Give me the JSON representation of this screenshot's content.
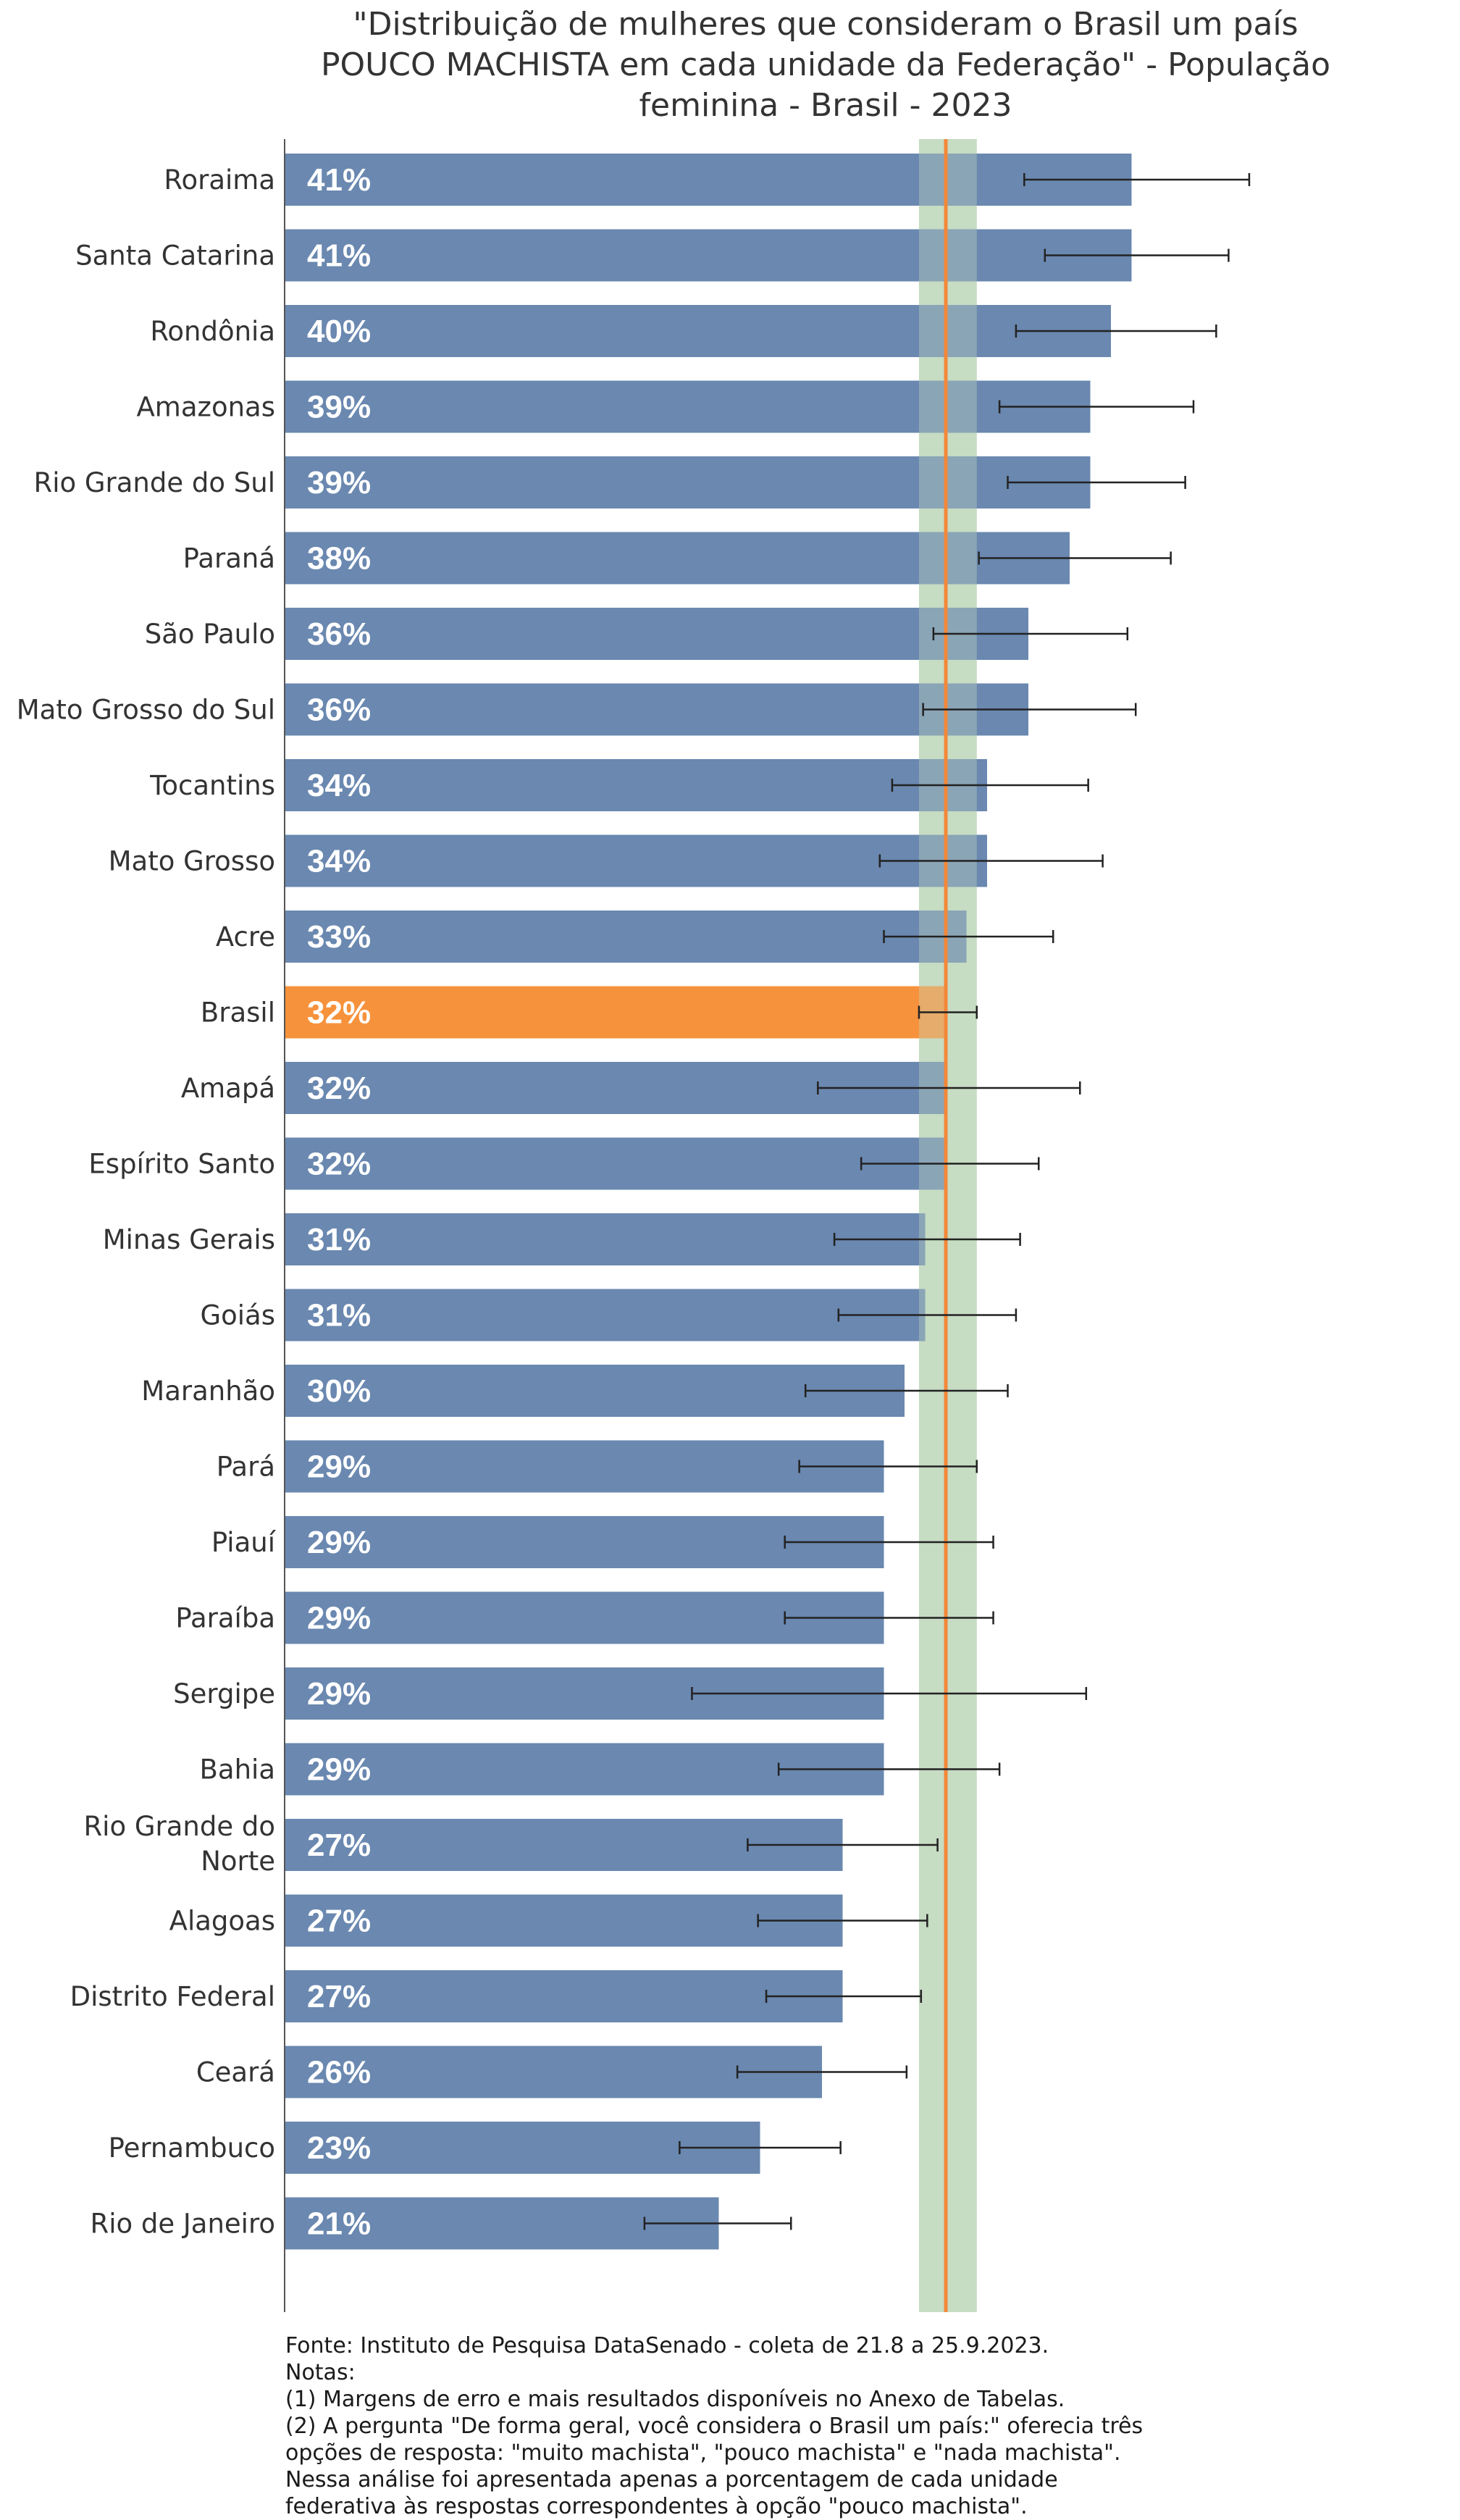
{
  "chart_data": {
    "type": "bar",
    "orientation": "horizontal",
    "title_lines": [
      "\"Distribuição de mulheres que consideram o Brasil um país",
      "POUCO MACHISTA em cada unidade da Federação\" - População",
      "feminina - Brasil - 2023"
    ],
    "categories": [
      "Roraima",
      "Santa Catarina",
      "Rondônia",
      "Amazonas",
      "Rio Grande do Sul",
      "Paraná",
      "São Paulo",
      "Mato Grosso do Sul",
      "Tocantins",
      "Mato Grosso",
      "Acre",
      "Brasil",
      "Amapá",
      "Espírito Santo",
      "Minas Gerais",
      "Goiás",
      "Maranhão",
      "Pará",
      "Piauí",
      "Paraíba",
      "Sergipe",
      "Bahia",
      "Rio Grande do Norte",
      "Alagoas",
      "Distrito Federal",
      "Ceará",
      "Pernambuco",
      "Rio de Janeiro"
    ],
    "values": [
      41,
      41,
      40,
      39,
      39,
      38,
      36,
      36,
      34,
      34,
      33,
      32,
      32,
      32,
      31,
      31,
      30,
      29,
      29,
      29,
      29,
      29,
      27,
      27,
      27,
      26,
      23,
      21
    ],
    "value_labels": [
      "41%",
      "41%",
      "40%",
      "39%",
      "39%",
      "38%",
      "36%",
      "36%",
      "34%",
      "34%",
      "33%",
      "32%",
      "32%",
      "32%",
      "31%",
      "31%",
      "30%",
      "29%",
      "29%",
      "29%",
      "29%",
      "29%",
      "27%",
      "27%",
      "27%",
      "26%",
      "23%",
      "21%"
    ],
    "error_low": [
      35.8,
      36.8,
      35.4,
      34.6,
      35.0,
      33.6,
      31.4,
      30.9,
      29.4,
      28.8,
      29.0,
      30.7,
      25.8,
      27.9,
      26.6,
      26.8,
      25.2,
      24.9,
      24.2,
      24.2,
      19.7,
      23.9,
      22.4,
      22.9,
      23.3,
      21.9,
      19.1,
      17.4
    ],
    "error_high": [
      46.7,
      45.7,
      45.1,
      44.0,
      43.6,
      42.9,
      40.8,
      41.2,
      38.9,
      39.6,
      37.2,
      33.5,
      38.5,
      36.5,
      35.6,
      35.4,
      35.0,
      33.5,
      34.3,
      34.3,
      38.8,
      34.6,
      31.6,
      31.1,
      30.8,
      30.1,
      26.9,
      24.5
    ],
    "highlight_category": "Brasil",
    "reference_value": 32,
    "reference_band": [
      30.7,
      33.5
    ],
    "colors": {
      "bar": "#6a88b0",
      "highlight_bar": "#f7923c",
      "reference_line": "#f2883a",
      "reference_band": "#c7dcc4",
      "error_bar": "#222222",
      "axis": "#555555"
    },
    "xlim": [
      0,
      50
    ],
    "grid": false,
    "legend": "none"
  },
  "notes": [
    "Fonte: Instituto de Pesquisa DataSenado - coleta de 21.8 a 25.9.2023.",
    "Notas:",
    "(1) Margens de erro e mais resultados disponíveis no Anexo de Tabelas.",
    "(2) A pergunta \"De forma geral, você considera o Brasil um país:\" oferecia três",
    "opções de resposta: \"muito machista\", \"pouco machista\" e \"nada machista\".",
    "Nessa análise foi apresentada apenas a porcentagem de cada unidade",
    "federativa às respostas correspondentes à opção \"pouco machista\"."
  ]
}
